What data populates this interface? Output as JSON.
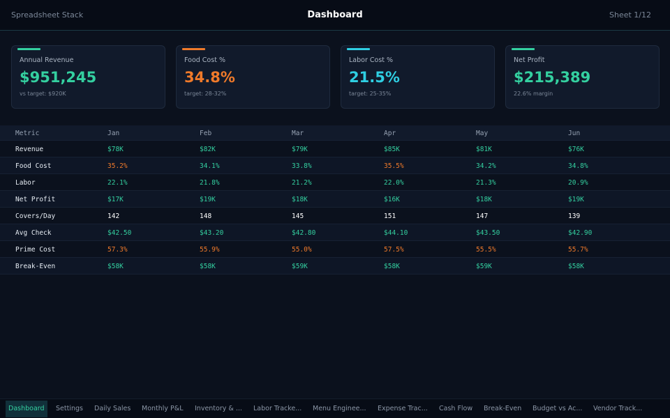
{
  "header": {
    "brand": "Spreadsheet Stack",
    "title": "Dashboard",
    "sheet": "Sheet 1/12"
  },
  "kpis": [
    {
      "label": "Annual Revenue",
      "value": "$951,245",
      "note": "vs target: $920K"
    },
    {
      "label": "Food Cost %",
      "value": "34.8%",
      "note": "target: 28-32%"
    },
    {
      "label": "Labor Cost %",
      "value": "21.5%",
      "note": "target: 25-35%"
    },
    {
      "label": "Net Profit",
      "value": "$215,389",
      "note": "22.6% margin"
    }
  ],
  "table": {
    "header": [
      "Metric",
      "Jan",
      "Feb",
      "Mar",
      "Apr",
      "May",
      "Jun"
    ],
    "rows": [
      [
        "Revenue",
        "$78K",
        "$82K",
        "$79K",
        "$85K",
        "$81K",
        "$76K"
      ],
      [
        "Food Cost",
        "35.2%",
        "34.1%",
        "33.8%",
        "35.5%",
        "34.2%",
        "34.8%"
      ],
      [
        "Labor",
        "22.1%",
        "21.8%",
        "21.2%",
        "22.0%",
        "21.3%",
        "20.9%"
      ],
      [
        "Net Profit",
        "$17K",
        "$19K",
        "$18K",
        "$16K",
        "$18K",
        "$19K"
      ],
      [
        "Covers/Day",
        "142",
        "148",
        "145",
        "151",
        "147",
        "139"
      ],
      [
        "Avg Check",
        "$42.50",
        "$43.20",
        "$42.80",
        "$44.10",
        "$43.50",
        "$42.90"
      ],
      [
        "Prime Cost",
        "57.3%",
        "55.9%",
        "55.0%",
        "57.5%",
        "55.5%",
        "55.7%"
      ],
      [
        "Break-Even",
        "$58K",
        "$58K",
        "$59K",
        "$58K",
        "$59K",
        "$58K"
      ]
    ]
  },
  "tabs": [
    "Dashboard",
    "Settings",
    "Daily Sales",
    "Monthly P&L",
    "Inventory & ...",
    "Labor Tracke...",
    "Menu Enginee...",
    "Expense Trac...",
    "Cash Flow",
    "Break-Even",
    "Budget vs Ac...",
    "Vendor Track..."
  ]
}
